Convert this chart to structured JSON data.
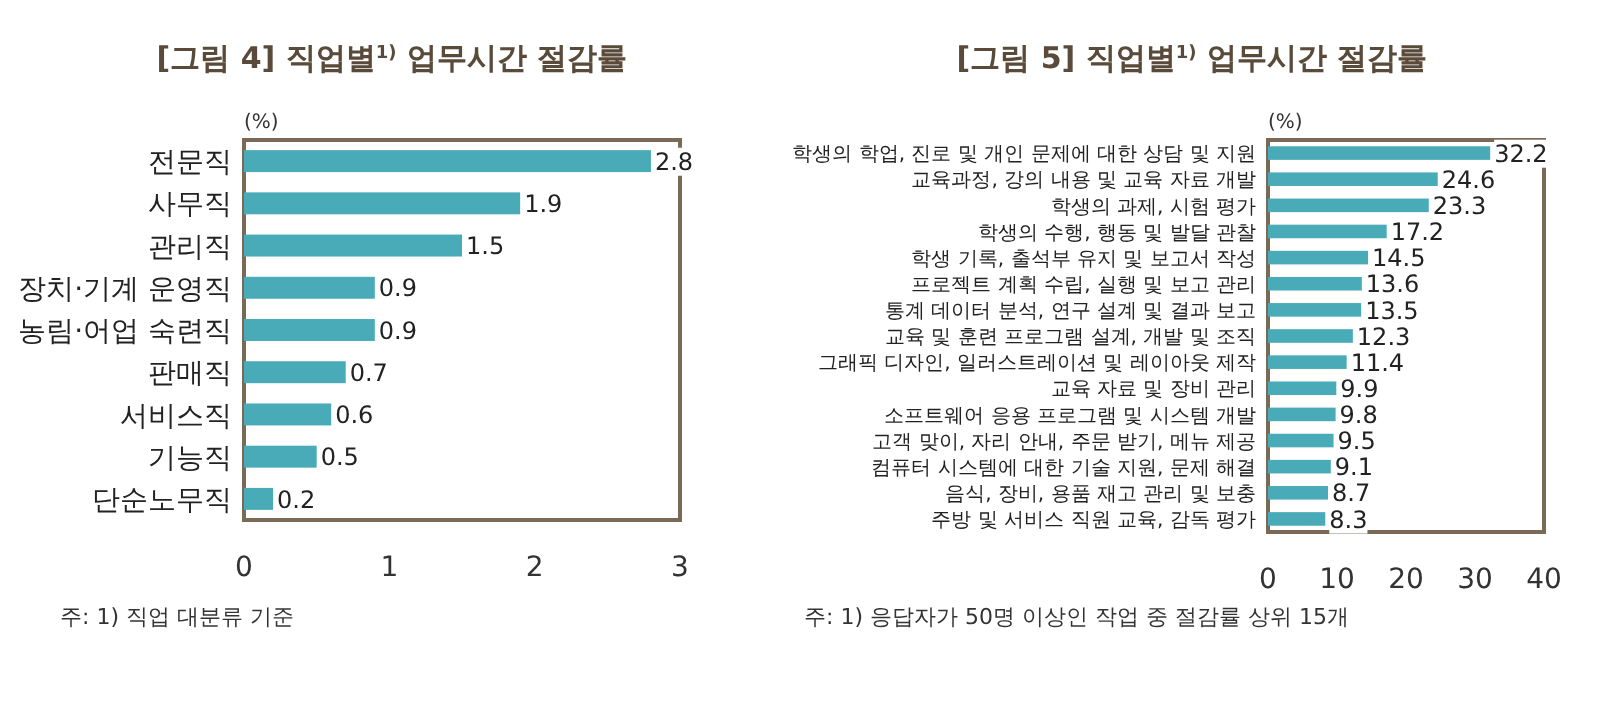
{
  "chart_data": [
    {
      "type": "bar",
      "orientation": "horizontal",
      "title": "[그림 4] 직업별$^{1)}$ 업무시간 절감률",
      "xlabel": "(%)",
      "categories": [
        "전문직",
        "사무직",
        "관리직",
        "장치·기계 운영직",
        "농림·어업 숙련직",
        "판매직",
        "서비스직",
        "기능직",
        "단순노무직"
      ],
      "values": [
        2.8,
        1.9,
        1.5,
        0.9,
        0.9,
        0.7,
        0.6,
        0.5,
        0.2
      ],
      "color": "#4aabb8",
      "xlim": [
        0,
        3
      ],
      "xticks": [
        0,
        1,
        2,
        3
      ],
      "data_labels": true,
      "annotations": [
        "주: 1) 직업 대분류 기준"
      ]
    },
    {
      "type": "bar",
      "orientation": "horizontal",
      "title": "[그림 5] 직업별$^{1)}$ 업무시간 절감률",
      "xlabel": "(%)",
      "categories": [
        "학생의 학업, 진로 및 개인 문제에 대한 상담 및 지원",
        "교육과정, 강의 내용 및 교육 자료 개발",
        "학생의 과제, 시험 평가",
        "학생의 수행, 행동 및 발달 관찰",
        "학생 기록, 출석부 유지 및 보고서 작성",
        "프로젝트 계획 수립, 실행 및 보고 관리",
        "통계 데이터 분석, 연구 설계 및 결과 보고",
        "교육 및 훈련 프로그램 설계, 개발 및 조직",
        "그래픽 디자인, 일러스트레이션 및 레이아웃 제작",
        "교육 자료 및 장비 관리",
        "소프트웨어 응용 프로그램 및 시스템 개발",
        "고객 맞이, 자리 안내, 주문 받기, 메뉴 제공",
        "컴퓨터 시스템에 대한 기술 지원, 문제 해결",
        "음식, 장비, 용품 재고 관리 및 보충",
        "주방 및 서비스 직원 교육, 감독 평가"
      ],
      "values": [
        32.2,
        24.6,
        23.3,
        17.2,
        14.5,
        13.6,
        13.5,
        12.3,
        11.4,
        9.9,
        9.8,
        9.5,
        9.1,
        8.7,
        8.3
      ],
      "color": "#4aabb8",
      "xlim": [
        0,
        40
      ],
      "xticks": [
        0,
        10,
        20,
        30,
        40
      ],
      "data_labels": true,
      "annotations": [
        "주: 1) 응답자가 50명 이상인 작업 중 절감률 상위 15개"
      ]
    }
  ]
}
